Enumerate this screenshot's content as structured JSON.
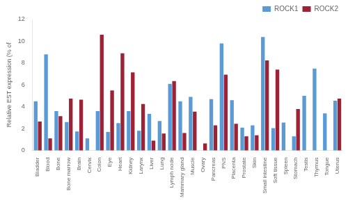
{
  "chart_data": {
    "type": "bar",
    "categories": [
      "Bladder",
      "Blood",
      "Bone",
      "Bone marrow",
      "Brain",
      "Cervix",
      "Colon",
      "Eye",
      "Heart",
      "Kidney",
      "Larynx",
      "Liver",
      "Lung",
      "Lymph node",
      "Mammary gland",
      "Muscle",
      "Ovary",
      "Pancreas",
      "PNS",
      "Placenta",
      "Prostate",
      "Skin",
      "Small intestine",
      "Soft tissue",
      "Spleen",
      "Stomach",
      "Testis",
      "Thymus",
      "Tongue",
      "Uterus"
    ],
    "series": [
      {
        "name": "ROCK1",
        "color": "#5b9bd5",
        "values": [
          4.5,
          8.8,
          3.6,
          2.6,
          1.75,
          1.1,
          3.6,
          1.7,
          2.5,
          3.6,
          1.8,
          3.35,
          2.7,
          6.1,
          4.5,
          4.9,
          0.0,
          4.7,
          9.8,
          4.6,
          2.1,
          2.3,
          10.4,
          2.05,
          2.55,
          1.3,
          5.0,
          7.5,
          3.4,
          4.55
        ]
      },
      {
        "name": "ROCK2",
        "color": "#9b2335",
        "values": [
          2.65,
          1.1,
          3.15,
          4.75,
          4.65,
          0.0,
          10.6,
          5.5,
          8.9,
          7.15,
          4.25,
          0.9,
          1.55,
          6.35,
          1.6,
          3.55,
          0.65,
          2.3,
          6.95,
          2.45,
          1.3,
          1.4,
          8.25,
          7.4,
          0.0,
          3.8,
          0.0,
          0.0,
          0.0,
          4.75
        ]
      }
    ],
    "ylabel": "Relative EST expression (% of",
    "ylim": [
      0,
      12
    ],
    "yticks": [
      0,
      2,
      4,
      6,
      8,
      10,
      12
    ],
    "grid": false,
    "legend": "upper right"
  }
}
